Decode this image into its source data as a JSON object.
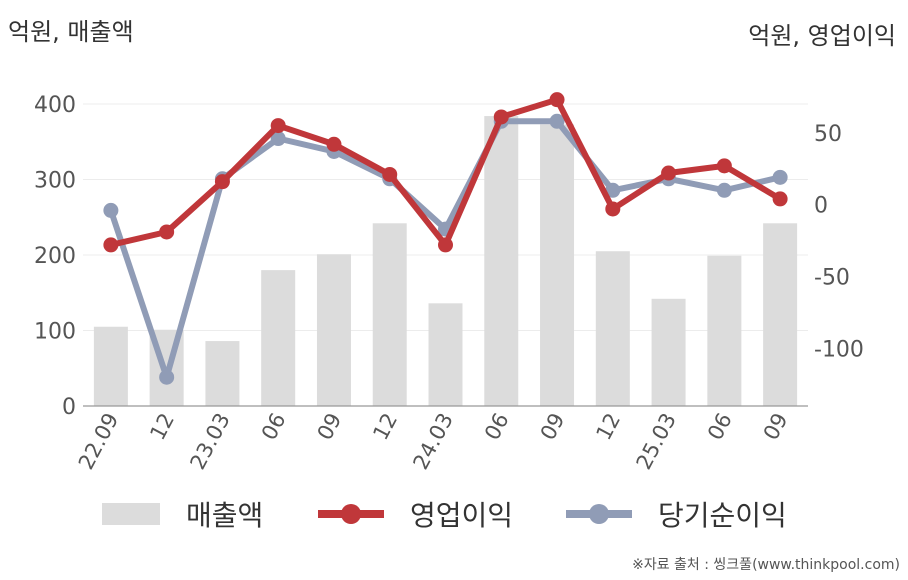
{
  "units": {
    "left": "억원, 매출액",
    "right": "억원, 영업이익"
  },
  "source": "※자료 출처 : 씽크풀(www.thinkpool.com)",
  "chart_data": {
    "type": "bar+line",
    "categories": [
      "22.09",
      "12",
      "23.03",
      "06",
      "09",
      "12",
      "24.03",
      "06",
      "09",
      "12",
      "25.03",
      "06",
      "09"
    ],
    "left_axis": {
      "ylim": [
        0,
        400
      ],
      "ticks": [
        0,
        100,
        200,
        300,
        400
      ]
    },
    "right_axis": {
      "ylim": [
        -140,
        70
      ],
      "ticks": [
        -100,
        -50,
        0,
        50
      ]
    },
    "grid": true,
    "legend_position": "bottom",
    "series": [
      {
        "name": "매출액",
        "type": "bar",
        "axis": "left",
        "color": "#dcdcdc",
        "values": [
          105,
          101,
          86,
          180,
          201,
          242,
          136,
          384,
          373,
          205,
          142,
          199,
          242
        ]
      },
      {
        "name": "영업이익",
        "type": "line",
        "axis": "right",
        "color": "#c0373a",
        "values": [
          -28,
          -19,
          16,
          55,
          42,
          21,
          -28,
          61,
          73,
          -3,
          22,
          27,
          4
        ]
      },
      {
        "name": "당기순이익",
        "type": "line",
        "axis": "right",
        "color": "#909cb6",
        "values": [
          -4,
          -120,
          18,
          46,
          37,
          18,
          -17,
          58,
          58,
          10,
          18,
          10,
          19
        ]
      }
    ]
  }
}
